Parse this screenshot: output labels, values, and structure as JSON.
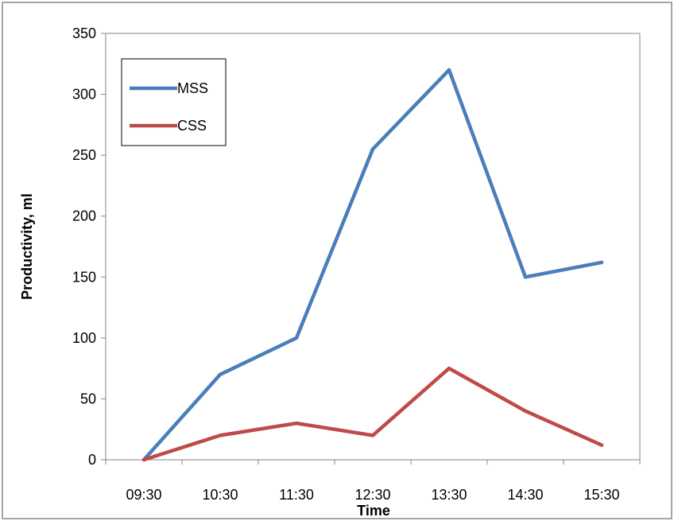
{
  "chart_data": {
    "type": "line",
    "title": "",
    "xlabel": "Time",
    "ylabel": "Productivity, ml",
    "categories": [
      "09:30",
      "10:30",
      "11:30",
      "12:30",
      "13:30",
      "14:30",
      "15:30"
    ],
    "ylim": [
      0,
      350
    ],
    "yticks": [
      0,
      50,
      100,
      150,
      200,
      250,
      300,
      350
    ],
    "grid": false,
    "legend_position": "top-left",
    "series": [
      {
        "name": "MSS",
        "color": "#4a7ebb",
        "values": [
          0,
          70,
          100,
          255,
          320,
          150,
          162
        ]
      },
      {
        "name": "CSS",
        "color": "#be4b48",
        "values": [
          0,
          20,
          30,
          20,
          75,
          40,
          12
        ]
      }
    ]
  }
}
